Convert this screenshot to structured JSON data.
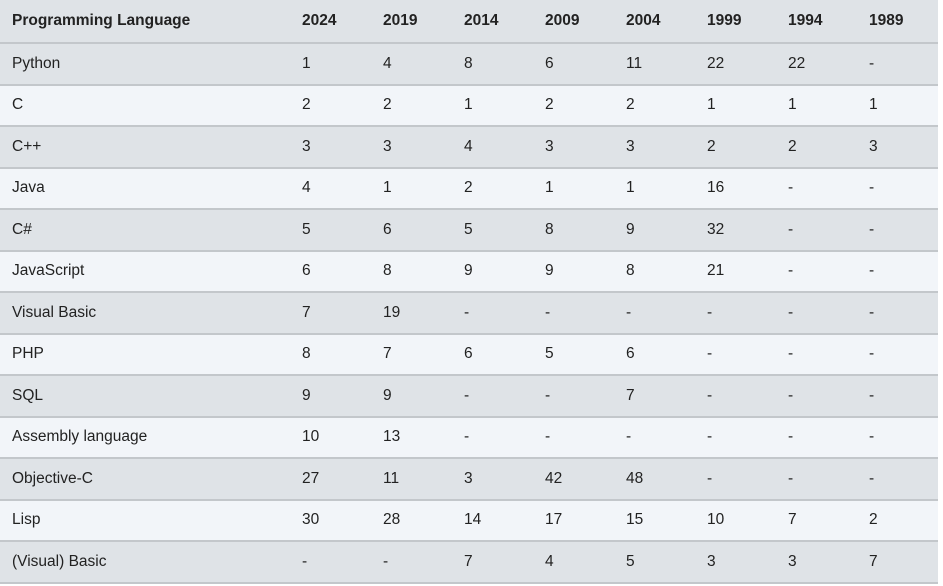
{
  "table": {
    "header": [
      "Programming Language",
      "2024",
      "2019",
      "2014",
      "2009",
      "2004",
      "1999",
      "1994",
      "1989"
    ],
    "rows": [
      [
        "Python",
        1,
        4,
        8,
        6,
        11,
        22,
        22,
        "-"
      ],
      [
        "C",
        2,
        2,
        1,
        2,
        2,
        1,
        1,
        1
      ],
      [
        "C++",
        3,
        3,
        4,
        3,
        3,
        2,
        2,
        3
      ],
      [
        "Java",
        4,
        1,
        2,
        1,
        1,
        16,
        "-",
        "-"
      ],
      [
        "C#",
        5,
        6,
        5,
        8,
        9,
        32,
        "-",
        "-"
      ],
      [
        "JavaScript",
        6,
        8,
        9,
        9,
        8,
        21,
        "-",
        "-"
      ],
      [
        "Visual Basic",
        7,
        19,
        "-",
        "-",
        "-",
        "-",
        "-",
        "-"
      ],
      [
        "PHP",
        8,
        7,
        6,
        5,
        6,
        "-",
        "-",
        "-"
      ],
      [
        "SQL",
        9,
        9,
        "-",
        "-",
        7,
        "-",
        "-",
        "-"
      ],
      [
        "Assembly language",
        10,
        13,
        "-",
        "-",
        "-",
        "-",
        "-",
        "-"
      ],
      [
        "Objective-C",
        27,
        11,
        3,
        42,
        48,
        "-",
        "-",
        "-"
      ],
      [
        "Lisp",
        30,
        28,
        14,
        17,
        15,
        10,
        7,
        2
      ],
      [
        "(Visual) Basic",
        "-",
        "-",
        7,
        4,
        5,
        3,
        3,
        7
      ]
    ]
  }
}
